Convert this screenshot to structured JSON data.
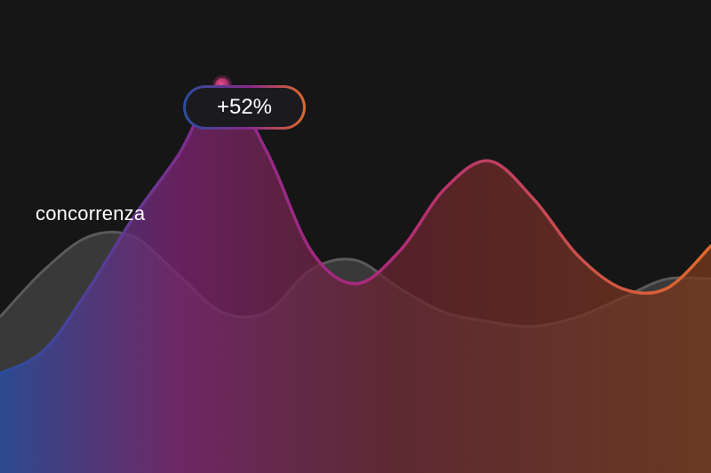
{
  "chart_data": {
    "type": "area",
    "x": [
      0,
      1,
      2,
      3,
      4,
      5,
      6,
      7,
      8,
      9,
      10,
      11,
      12,
      13,
      14,
      15,
      16
    ],
    "ylim": [
      0,
      100
    ],
    "series": [
      {
        "name": "concorrenza",
        "values": [
          33,
          43,
          50,
          50,
          42,
          34,
          34,
          43,
          45,
          39,
          34,
          32,
          31,
          33,
          37,
          41,
          41
        ]
      },
      {
        "values": [
          21,
          26,
          39,
          54,
          67,
          82,
          68,
          47,
          40,
          47,
          60,
          66,
          58,
          46,
          39,
          39,
          48
        ]
      }
    ],
    "annotation": {
      "label": "+52%",
      "series_index": 1,
      "x": 5
    },
    "colors": {
      "background": "#161616",
      "competitor_line": "#5a5a5a",
      "competitor_fill": "#3d3d3d",
      "gradient_start": "#2a4d9e",
      "gradient_mid": "#8a2a8a",
      "gradient_end": "#e06a2a"
    }
  }
}
